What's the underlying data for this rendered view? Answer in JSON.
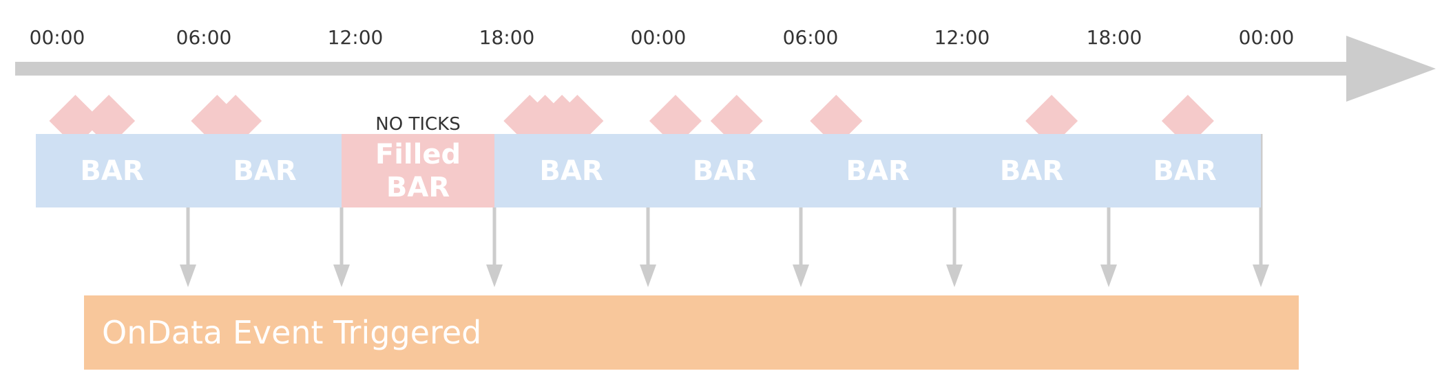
{
  "timeline": {
    "tick_labels": [
      "00:00",
      "06:00",
      "12:00",
      "18:00",
      "00:00",
      "06:00",
      "12:00",
      "18:00",
      "00:00"
    ]
  },
  "bars": [
    {
      "label": "BAR",
      "filled": false,
      "ticks": 2
    },
    {
      "label": "BAR",
      "filled": false,
      "ticks": 2
    },
    {
      "label": "Filled\nBAR",
      "filled": true,
      "ticks": 0,
      "note": "NO TICKS"
    },
    {
      "label": "BAR",
      "filled": false,
      "ticks": 4
    },
    {
      "label": "BAR",
      "filled": false,
      "ticks": 2
    },
    {
      "label": "BAR",
      "filled": false,
      "ticks": 1
    },
    {
      "label": "BAR",
      "filled": false,
      "ticks": 1
    },
    {
      "label": "BAR",
      "filled": false,
      "ticks": 1
    }
  ],
  "event": {
    "label": "OnData Event Triggered"
  },
  "colors": {
    "axis": "#cccccc",
    "bar": "#cfe0f3",
    "filled_bar": "#f5caca",
    "tick_marker": "#f5caca",
    "event": "#f8c79b",
    "arrow": "#cccccc"
  }
}
